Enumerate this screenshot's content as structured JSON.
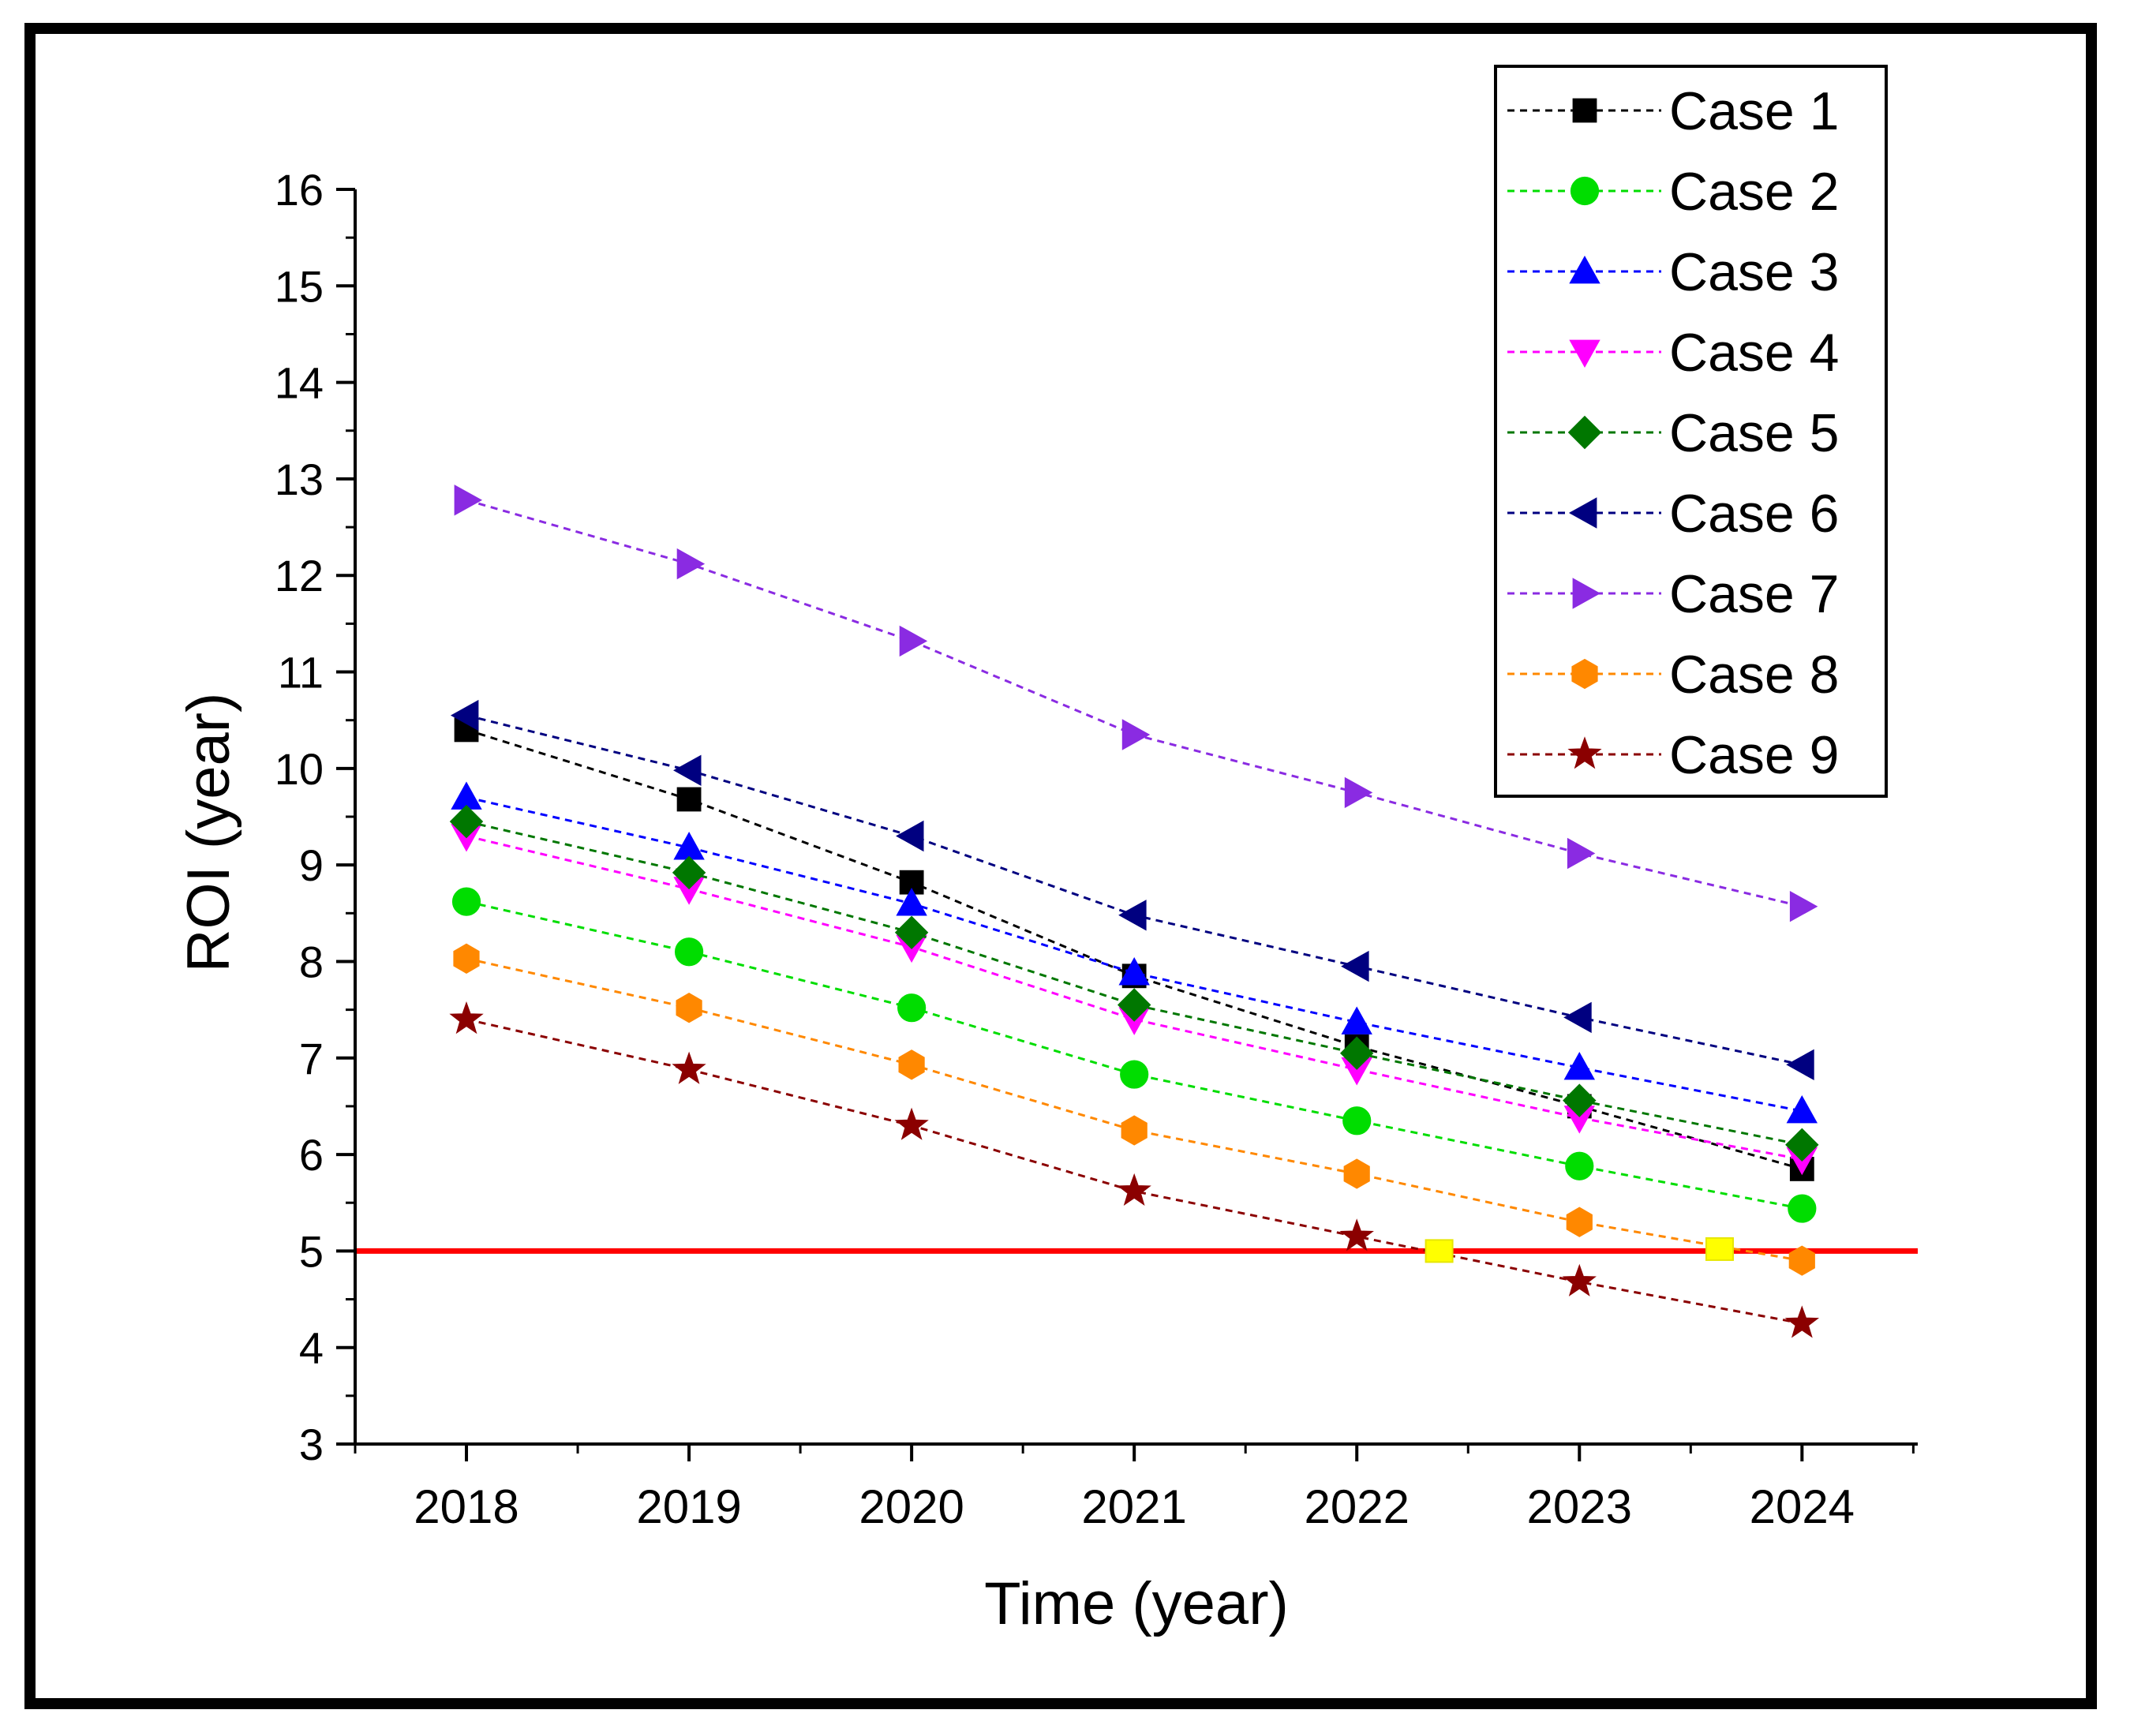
{
  "chart_data": {
    "type": "line",
    "title": "",
    "xlabel": "Time (year)",
    "ylabel": "ROI (year)",
    "x": [
      2018,
      2019,
      2020,
      2021,
      2022,
      2023,
      2024
    ],
    "x_tick_labels": [
      "2018",
      "2019",
      "2020",
      "2021",
      "2022",
      "2023",
      "2024"
    ],
    "xlim": [
      2017.5,
      2024.52
    ],
    "ylim": [
      3,
      16
    ],
    "y_ticks": [
      3,
      4,
      5,
      6,
      7,
      8,
      9,
      10,
      11,
      12,
      13,
      14,
      15,
      16
    ],
    "y_tick_labels": [
      "3",
      "4",
      "5",
      "6",
      "7",
      "8",
      "9",
      "10",
      "11",
      "12",
      "13",
      "14",
      "15",
      "16"
    ],
    "legend_position": "top-right",
    "series": [
      {
        "name": "Case 1",
        "color": "#000000",
        "marker": "square",
        "values": [
          10.4,
          9.68,
          8.82,
          7.85,
          7.12,
          6.5,
          5.85
        ]
      },
      {
        "name": "Case 2",
        "color": "#00dd00",
        "marker": "circle",
        "values": [
          8.62,
          8.1,
          7.52,
          6.83,
          6.35,
          5.88,
          5.44
        ]
      },
      {
        "name": "Case 3",
        "color": "#0000ff",
        "marker": "triangle-up",
        "values": [
          9.7,
          9.18,
          8.6,
          7.88,
          7.37,
          6.9,
          6.45
        ]
      },
      {
        "name": "Case 4",
        "color": "#ff00ff",
        "marker": "triangle-down",
        "values": [
          9.3,
          8.75,
          8.15,
          7.4,
          6.88,
          6.38,
          5.95
        ]
      },
      {
        "name": "Case 5",
        "color": "#007700",
        "marker": "diamond",
        "values": [
          9.45,
          8.92,
          8.3,
          7.55,
          7.05,
          6.56,
          6.1
        ]
      },
      {
        "name": "Case 6",
        "color": "#000080",
        "marker": "triangle-left",
        "values": [
          10.55,
          9.98,
          9.3,
          8.48,
          7.95,
          7.42,
          6.93
        ]
      },
      {
        "name": "Case 7",
        "color": "#8a2be2",
        "marker": "triangle-right",
        "values": [
          12.78,
          12.12,
          11.32,
          10.35,
          9.75,
          9.12,
          8.57
        ]
      },
      {
        "name": "Case 8",
        "color": "#ff8800",
        "marker": "hexagon",
        "values": [
          8.03,
          7.52,
          6.93,
          6.25,
          5.8,
          5.3,
          4.9
        ]
      },
      {
        "name": "Case 9",
        "color": "#8b0000",
        "marker": "star",
        "values": [
          7.4,
          6.88,
          6.3,
          5.62,
          5.15,
          4.68,
          4.25
        ]
      }
    ],
    "annotations": {
      "reference_line": {
        "y": 5,
        "color": "#ff0000"
      },
      "crossing_points": [
        {
          "x": 2022.37,
          "y": 5,
          "color": "#ffff00"
        },
        {
          "x": 2023.63,
          "y": 5.02,
          "color": "#ffff00"
        }
      ]
    }
  }
}
